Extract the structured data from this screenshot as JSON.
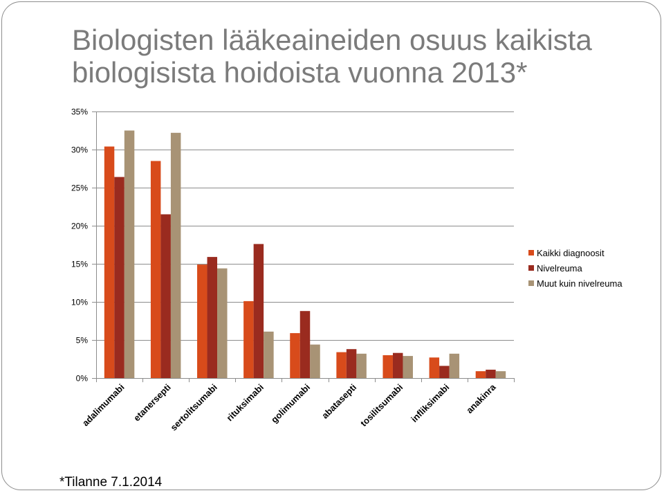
{
  "title": {
    "line1": "Biologisten lääkeaineiden osuus kaikista",
    "line2": "biologisista hoidoista vuonna 2013*"
  },
  "footnote": "*Tilanne 7.1.2014",
  "chart_data": {
    "type": "bar",
    "categories": [
      "adalimumabi",
      "etanersepti",
      "sertolitsumabi",
      "rituksimabi",
      "golimumabi",
      "abatasepti",
      "tosilitsumabi",
      "infliksimabi",
      "anakinra"
    ],
    "series": [
      {
        "name": "Kaikki diagnoosit",
        "color": "#d84b1b",
        "values": [
          30.4,
          28.5,
          14.9,
          10.1,
          5.9,
          3.4,
          3.0,
          2.7,
          0.9
        ]
      },
      {
        "name": "Nivelreuma",
        "color": "#9a2b1f",
        "values": [
          26.4,
          21.5,
          15.9,
          17.6,
          8.8,
          3.8,
          3.3,
          1.6,
          1.1
        ]
      },
      {
        "name": "Muut kuin nivelreuma",
        "color": "#a89375",
        "values": [
          32.5,
          32.2,
          14.4,
          6.1,
          4.4,
          3.2,
          2.9,
          3.2,
          0.9
        ]
      }
    ],
    "ylim": [
      0,
      35
    ],
    "yticks": [
      "0%",
      "5%",
      "10%",
      "15%",
      "20%",
      "25%",
      "30%",
      "35%"
    ],
    "ytick_values": [
      0,
      5,
      10,
      15,
      20,
      25,
      30,
      35
    ],
    "grid": true,
    "legend_position": "right"
  }
}
